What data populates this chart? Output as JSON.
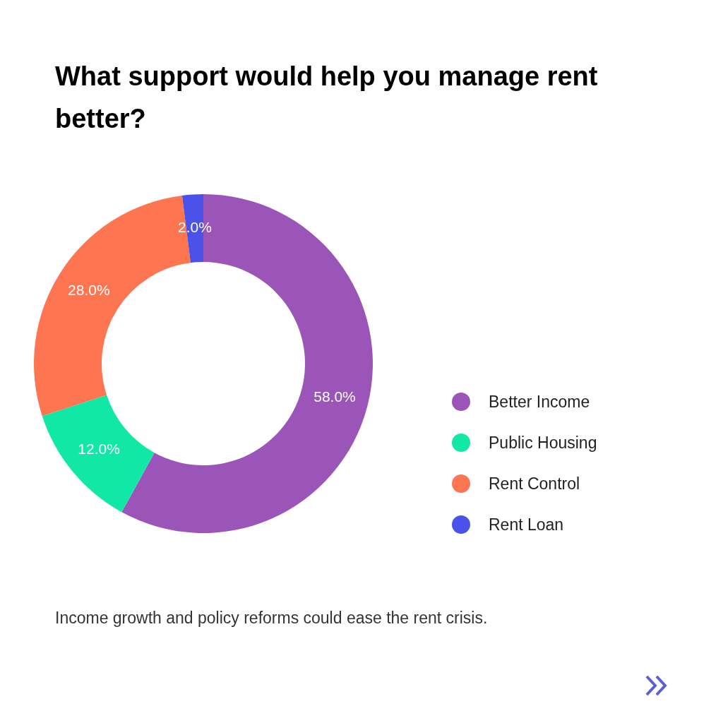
{
  "chart_data": {
    "type": "donut",
    "title": "What support would help you manage rent better?",
    "categories": [
      "Better Income",
      "Public Housing",
      "Rent Control",
      "Rent Loan"
    ],
    "values": [
      58,
      12,
      28,
      2
    ],
    "colors": [
      "#9b55b9",
      "#12e8a6",
      "#fe7651",
      "#4b52e9"
    ],
    "value_labels": [
      "58.0%",
      "12.0%",
      "28.0%",
      "2.0%"
    ],
    "legend": "right",
    "annotations": [
      "Income growth and policy reforms could ease the rent crisis."
    ]
  }
}
